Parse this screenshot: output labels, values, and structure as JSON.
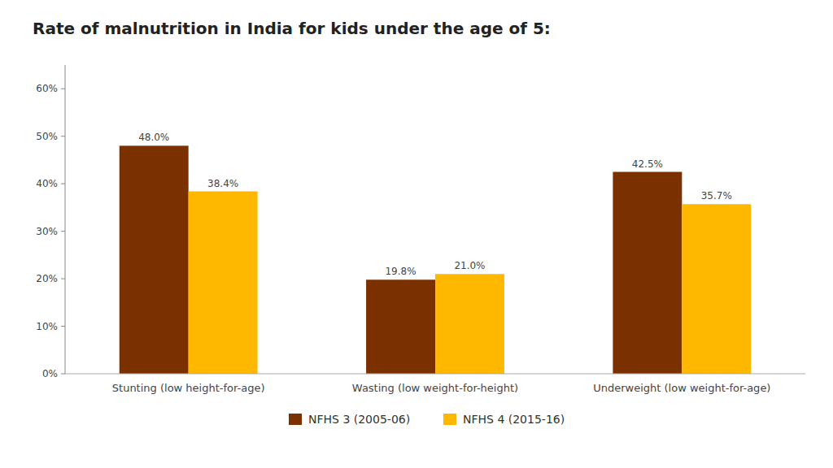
{
  "chart_data": {
    "type": "bar",
    "title": "Rate of malnutrition in India for kids under the age of 5:",
    "categories": [
      "Stunting (low height-for-age)",
      "Wasting (low weight-for-height)",
      "Underweight (low weight-for-age)"
    ],
    "series": [
      {
        "name": "NFHS 3 (2005-06)",
        "color": "#7B3000",
        "values": [
          48.0,
          19.8,
          42.5
        ],
        "value_labels": [
          "48.0%",
          "19.8%",
          "42.5%"
        ]
      },
      {
        "name": "NFHS 4 (2015-16)",
        "color": "#FFB800",
        "values": [
          38.4,
          21.0,
          35.7
        ],
        "value_labels": [
          "38.4%",
          "21.0%",
          "35.7%"
        ]
      }
    ],
    "ylim": [
      0,
      65
    ],
    "yticks": [
      {
        "value": 0,
        "label": "0%"
      },
      {
        "value": 10,
        "label": "10%"
      },
      {
        "value": 20,
        "label": "20%"
      },
      {
        "value": 30,
        "label": "30%"
      },
      {
        "value": 40,
        "label": "40%"
      },
      {
        "value": 50,
        "label": "50%"
      },
      {
        "value": 60,
        "label": "60%"
      }
    ],
    "grid": false,
    "legend": "bottom",
    "data_labels": true
  }
}
